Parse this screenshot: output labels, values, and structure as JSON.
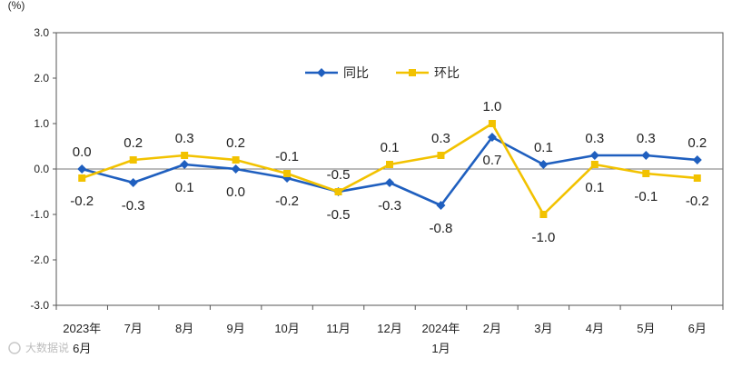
{
  "chart_data": {
    "type": "line",
    "unit_label": "(%)",
    "categories": [
      "2023年\n6月",
      "7月",
      "8月",
      "9月",
      "10月",
      "11月",
      "12月",
      "2024年\n1月",
      "2月",
      "3月",
      "4月",
      "5月",
      "6月"
    ],
    "ylim": [
      -3.0,
      3.0
    ],
    "yticks": [
      "3.0",
      "2.0",
      "1.0",
      "0.0",
      "-1.0",
      "-2.0",
      "-3.0"
    ],
    "legend_position": "top-center",
    "series": [
      {
        "name": "同比",
        "color": "#1f5fbf",
        "marker": "diamond",
        "values": [
          0.0,
          -0.3,
          0.1,
          0.0,
          -0.2,
          -0.5,
          -0.3,
          -0.8,
          0.7,
          0.1,
          0.3,
          0.3,
          0.2
        ],
        "labels": [
          "0.0",
          "-0.3",
          "0.1",
          "0.0",
          "-0.2",
          "-0.5",
          "-0.3",
          "-0.8",
          "0.7",
          "0.1",
          "0.3",
          "0.3",
          "0.2"
        ]
      },
      {
        "name": "环比",
        "color": "#f2c200",
        "marker": "square",
        "values": [
          -0.2,
          0.2,
          0.3,
          0.2,
          -0.1,
          -0.5,
          0.1,
          0.3,
          1.0,
          -1.0,
          0.1,
          -0.1,
          -0.2
        ],
        "labels": [
          "-0.2",
          "0.2",
          "0.3",
          "0.2",
          "-0.1",
          "-0.5",
          "0.1",
          "0.3",
          "1.0",
          "-1.0",
          "0.1",
          "-0.1",
          "-0.2"
        ]
      }
    ]
  },
  "watermark": "大数据说"
}
